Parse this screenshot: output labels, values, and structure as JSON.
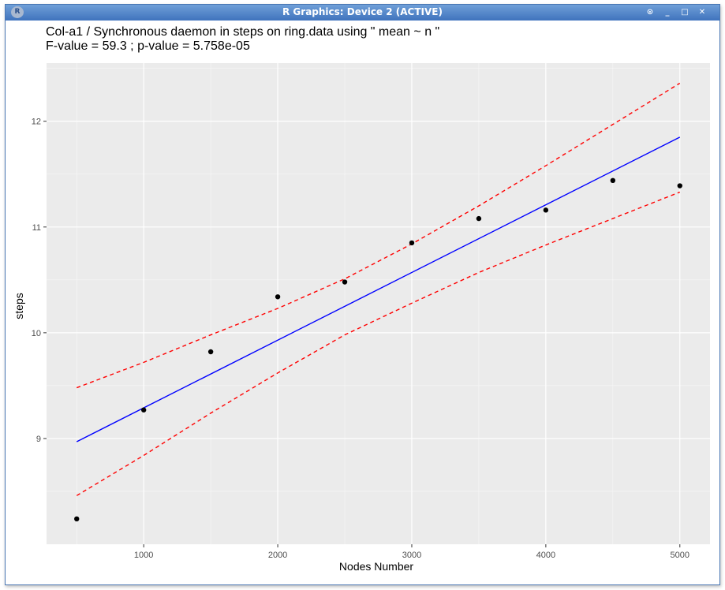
{
  "window": {
    "title": "R Graphics: Device 2 (ACTIVE)",
    "app_icon": "R",
    "buttons": [
      "pin-icon",
      "minimize-icon",
      "maximize-icon",
      "close-icon"
    ],
    "button_glyphs": [
      "⊙",
      "_",
      "□",
      "✕"
    ]
  },
  "chart_data": {
    "type": "scatter",
    "title": "Col-a1 / Synchronous daemon in steps on ring.data using \" mean ~ n \"",
    "subtitle": "F-value = 59.3  ; p-value = 5.758e-05",
    "xlabel": "Nodes Number",
    "ylabel": "steps",
    "xlim": [
      275,
      5225
    ],
    "ylim": [
      8.0,
      12.55
    ],
    "xticks": [
      1000,
      2000,
      3000,
      4000,
      5000
    ],
    "xtick_labels": [
      "1000",
      "2000",
      "3000",
      "4000",
      "5000"
    ],
    "yticks": [
      9,
      10,
      11,
      12
    ],
    "ytick_labels": [
      "9",
      "10",
      "11",
      "12"
    ],
    "grid": true,
    "legend": "none",
    "background_color": "#ebebeb",
    "point_color": "#000000",
    "fit_color": "#0000ff",
    "band_color": "#ff0000",
    "points": {
      "x": [
        500,
        1000,
        1500,
        2000,
        2500,
        3000,
        3500,
        4000,
        4500,
        5000
      ],
      "y": [
        8.24,
        9.27,
        9.82,
        10.34,
        10.48,
        10.85,
        11.08,
        11.16,
        11.44,
        11.39
      ]
    },
    "fit_line": {
      "x": [
        500,
        5000
      ],
      "y": [
        8.97,
        11.85
      ]
    },
    "upper_band": {
      "x": [
        500,
        1000,
        1500,
        2000,
        2500,
        3000,
        3500,
        4000,
        4500,
        5000
      ],
      "y": [
        9.48,
        9.72,
        9.98,
        10.23,
        10.51,
        10.84,
        11.2,
        11.58,
        11.97,
        12.36
      ]
    },
    "lower_band": {
      "x": [
        500,
        1000,
        1500,
        2000,
        2500,
        3000,
        3500,
        4000,
        4500,
        5000
      ],
      "y": [
        8.46,
        8.84,
        9.24,
        9.62,
        9.98,
        10.28,
        10.57,
        10.83,
        11.08,
        11.33
      ]
    }
  }
}
